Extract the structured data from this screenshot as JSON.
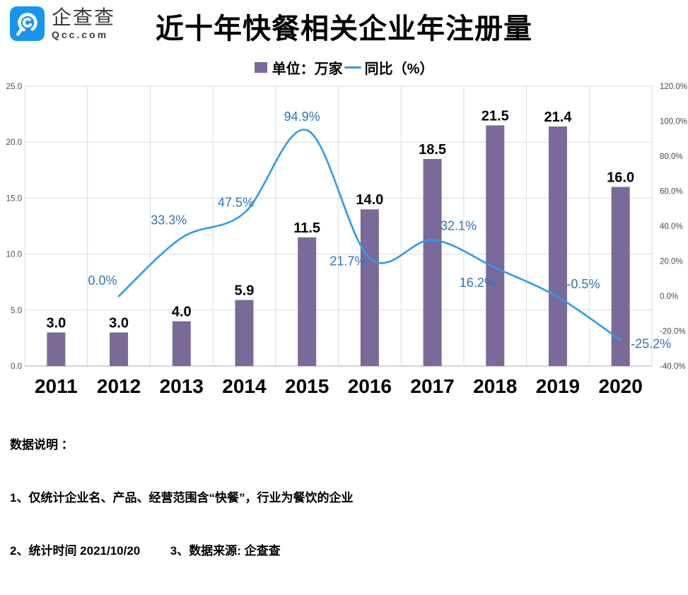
{
  "header": {
    "logo": {
      "brand_cn": "企查查",
      "brand_en": "Qcc.com",
      "icon_color": "#1794F0"
    },
    "title": "近十年快餐相关企业年注册量",
    "legend": {
      "bar_label": "单位：万家",
      "line_label": "同比（%）"
    }
  },
  "chart_data": {
    "type": "bar+line",
    "title": "近十年快餐相关企业年注册量",
    "categories": [
      "2011",
      "2012",
      "2013",
      "2014",
      "2015",
      "2016",
      "2017",
      "2018",
      "2019",
      "2020"
    ],
    "series": [
      {
        "name": "单位：万家",
        "type": "bar",
        "axis": "left",
        "color": "#7A6A99",
        "values": [
          3.0,
          3.0,
          4.0,
          5.9,
          11.5,
          14.0,
          18.5,
          21.5,
          21.4,
          16.0
        ],
        "labels": [
          "3.0",
          "3.0",
          "4.0",
          "5.9",
          "11.5",
          "14.0",
          "18.5",
          "21.5",
          "21.4",
          "16.0"
        ]
      },
      {
        "name": "同比（%）",
        "type": "line",
        "axis": "right",
        "color": "#2B9CEB",
        "label_color": "#2E74B5",
        "values": [
          null,
          0.0,
          33.3,
          47.5,
          94.9,
          21.7,
          32.1,
          16.2,
          -0.5,
          -25.2
        ],
        "labels": [
          null,
          "0.0%",
          "33.3%",
          "47.5%",
          "94.9%",
          "21.7%",
          "32.1%",
          "16.2%",
          "-0.5%",
          "-25.2%"
        ]
      }
    ],
    "left_axis": {
      "min": 0,
      "max": 25,
      "step": 5,
      "tick_labels": [
        "0.0",
        "5.0",
        "10.0",
        "15.0",
        "20.0",
        "25.0"
      ]
    },
    "right_axis": {
      "min": -40,
      "max": 120,
      "step": 20,
      "tick_labels": [
        "-40.0%",
        "-20.0%",
        "0.0%",
        "20.0%",
        "40.0%",
        "60.0%",
        "80.0%",
        "100.0%",
        "120.0%"
      ]
    },
    "grid": {
      "show": true,
      "color": "#D9D9D9",
      "axis_color": "#ADADAD"
    },
    "legend_position": "top"
  },
  "notes": {
    "heading": "数据说明 ：",
    "line1": "1、仅统计企业名、产品、经营范围含“快餐”，行业为餐饮的企业",
    "line2": "2、统计时间 2021/10/20         3、数据来源: 企查查"
  }
}
